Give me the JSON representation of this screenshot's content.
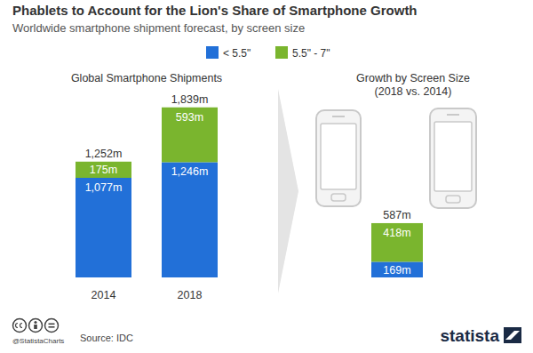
{
  "title": "Phablets to Account for the Lion's Share of Smartphone Growth",
  "subtitle": "Worldwide smartphone shipment forecast, by screen size",
  "footer": {
    "handle": "@StatistaCharts",
    "source": "Source: IDC",
    "brand": "statista"
  },
  "chart_data": [
    {
      "type": "bar",
      "stacked": true,
      "data_labels": true,
      "legend": "top",
      "tick_labels": "x",
      "title": "Global Smartphone Shipments",
      "categories": [
        "2014",
        "2018"
      ],
      "series": [
        {
          "name": "< 5.5\"",
          "color": "#2270d8",
          "values": [
            1077,
            1246
          ],
          "value_labels": [
            "1,077m",
            "1,246m"
          ]
        },
        {
          "name": "5.5\" - 7\"",
          "color": "#7ab52e",
          "values": [
            175,
            593
          ],
          "value_labels": [
            "175m",
            "593m"
          ]
        }
      ],
      "totals": [
        1252,
        1839
      ],
      "total_labels": [
        "1,252m",
        "1,839m"
      ],
      "ylim": [
        0,
        2000
      ]
    },
    {
      "type": "bar",
      "stacked": true,
      "data_labels": true,
      "tick_labels": false,
      "title": "Growth by Screen Size",
      "subtitle": "(2018 vs. 2014)",
      "categories": [
        null
      ],
      "series": [
        {
          "color": "#2270d8",
          "values": [
            169
          ],
          "value_labels": [
            "169m"
          ]
        },
        {
          "color": "#7ab52e",
          "values": [
            418
          ],
          "value_labels": [
            "418m"
          ]
        }
      ],
      "totals": [
        587
      ],
      "total_labels": [
        "587m"
      ],
      "ylim": [
        0,
        2000
      ]
    }
  ]
}
